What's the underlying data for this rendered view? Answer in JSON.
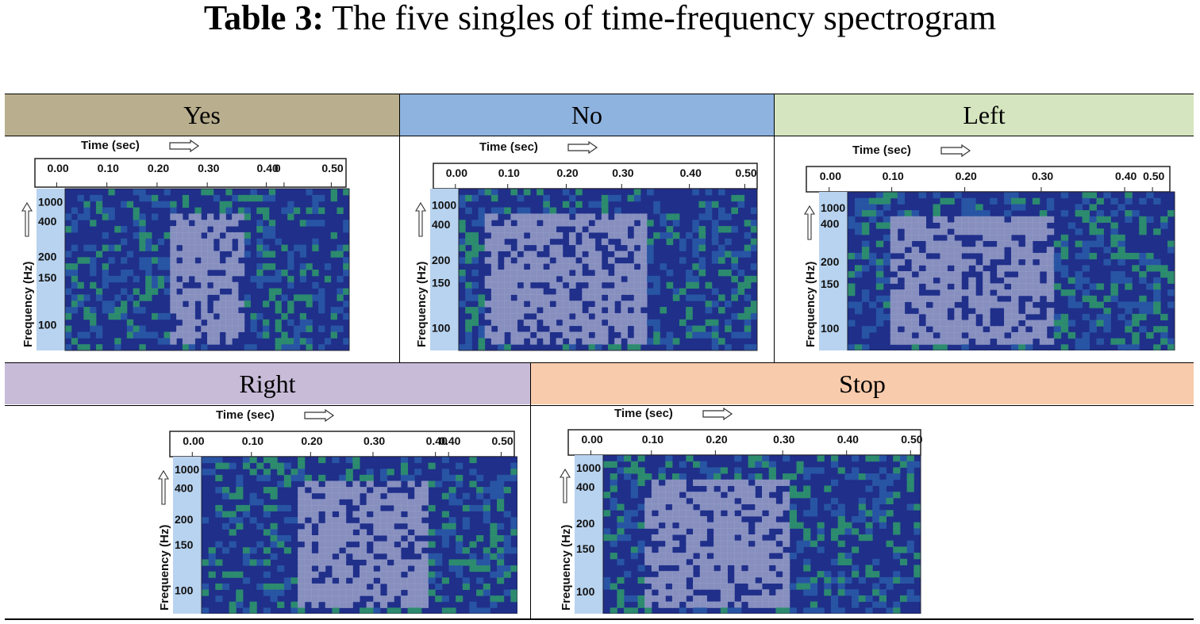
{
  "caption": {
    "label": "Table 3:",
    "text": " The five singles of time-frequency spectrogram"
  },
  "panels": [
    {
      "name": "Yes",
      "header_color": "#b9af8e",
      "xticks": [
        "0.00",
        "0.10",
        "0.20",
        "0.30",
        "0.40",
        "0",
        "0.50"
      ]
    },
    {
      "name": "No",
      "header_color": "#8fb3df",
      "xticks": [
        "0.00",
        "0.10",
        "0.20",
        "0.30",
        "0.40",
        "0.50"
      ]
    },
    {
      "name": "Left",
      "header_color": "#d5e5bf",
      "xticks": [
        "0.00",
        "0.10",
        "0.20",
        "0.30",
        "0.40",
        "0.50"
      ]
    },
    {
      "name": "Right",
      "header_color": "#c8bbd8",
      "xticks": [
        "0.00",
        "0.10",
        "0.20",
        "0.30",
        "0.40",
        "0.40",
        "0.50"
      ]
    },
    {
      "name": "Stop",
      "header_color": "#f8cbac",
      "xticks": [
        "0.00",
        "0.10",
        "0.20",
        "0.30",
        "0.40",
        "0.50"
      ]
    }
  ],
  "axes": {
    "x_title": "Time (sec)",
    "y_title": "Frequency (Hz)",
    "y_ticks": [
      "1000",
      "400",
      "200",
      "150",
      "100"
    ]
  },
  "colors": {
    "spec_bg": "#1f2f8a",
    "spec_green": "#2f9a6a",
    "spec_light": "#9aa0c8",
    "axis_panel": "#b8d3ef"
  }
}
